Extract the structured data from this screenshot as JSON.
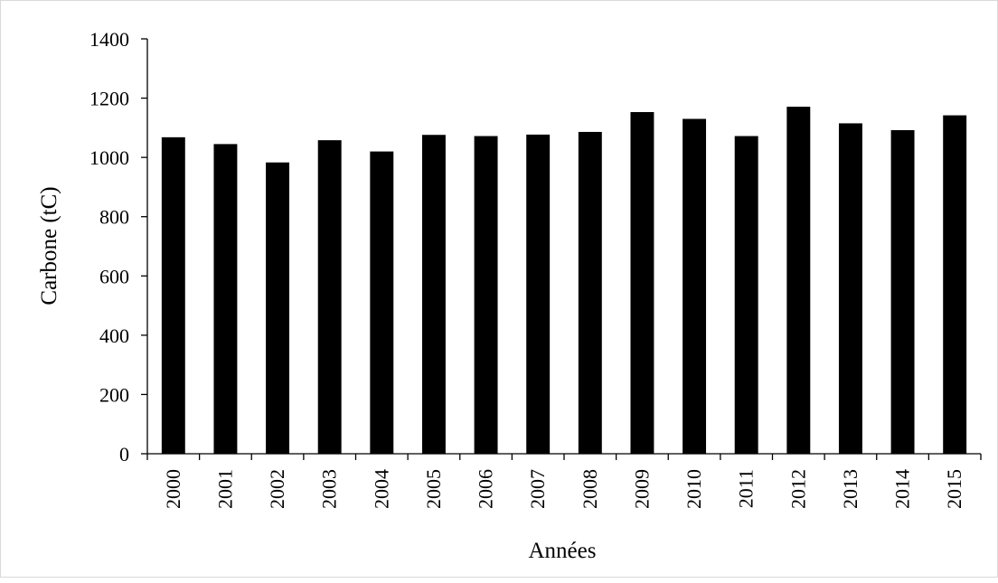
{
  "chart_data": {
    "type": "bar",
    "title": "",
    "xlabel": "Années",
    "ylabel": "Carbone (tC)",
    "categories": [
      "2000",
      "2001",
      "2002",
      "2003",
      "2004",
      "2005",
      "2006",
      "2007",
      "2008",
      "2009",
      "2010",
      "2011",
      "2012",
      "2013",
      "2014",
      "2015"
    ],
    "values": [
      1068,
      1045,
      983,
      1058,
      1020,
      1076,
      1072,
      1077,
      1086,
      1153,
      1130,
      1072,
      1171,
      1115,
      1092,
      1142
    ],
    "ylim": [
      0,
      1400
    ],
    "yticks": [
      "0",
      "200",
      "400",
      "600",
      "800",
      "1000",
      "1200",
      "1400"
    ],
    "grid": false,
    "legend": "none",
    "bar_color": "#000000"
  }
}
